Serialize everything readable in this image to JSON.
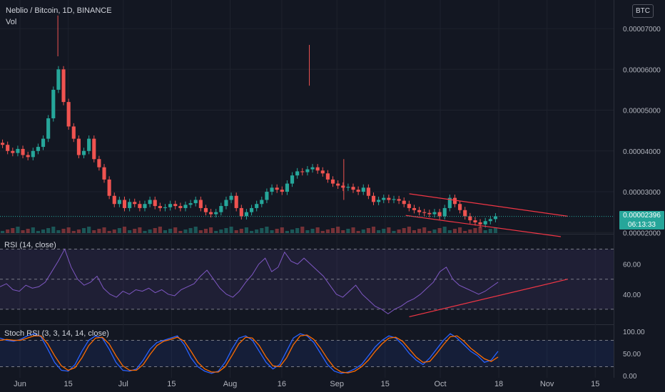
{
  "header": {
    "title": "Neblio / Bitcoin, 1D, BINANCE",
    "vol_label": "Vol",
    "currency_badge": "BTC",
    "rsi_label": "RSI (14, close)",
    "stoch_label": "Stoch RSI (3, 3, 14, 14, close)"
  },
  "price_badge": {
    "price": "0.00002396",
    "countdown": "06:13:33"
  },
  "colors": {
    "background": "#131722",
    "up": "#26a69a",
    "down": "#ef5350",
    "rsi": "#7e57c2",
    "stoch_k": "#2962ff",
    "stoch_d": "#ff6d00",
    "trendline": "#f23645"
  },
  "chart_data": [
    {
      "type": "candlestick",
      "title": "Neblio / Bitcoin, 1D, BINANCE",
      "x_ticks": [
        "Jun",
        "15",
        "Jul",
        "15",
        "Aug",
        "16",
        "Sep",
        "15",
        "Oct",
        "18",
        "Nov",
        "15"
      ],
      "y_ticks": [
        "0.00002000",
        "0.00003000",
        "0.00004000",
        "0.00005000",
        "0.00006000",
        "0.00007000"
      ],
      "ylim": [
        1.97e-05,
        7.7e-05
      ],
      "current_price": 2.396e-05,
      "closes": [
        4.15,
        4.0,
        3.95,
        4.05,
        3.9,
        3.85,
        4.0,
        4.1,
        4.3,
        4.8,
        5.5,
        6.0,
        5.2,
        4.6,
        4.3,
        3.9,
        4.0,
        4.3,
        3.8,
        3.6,
        3.3,
        2.9,
        2.7,
        2.8,
        2.6,
        2.75,
        2.7,
        2.6,
        2.7,
        2.8,
        2.65,
        2.6,
        2.62,
        2.7,
        2.65,
        2.6,
        2.68,
        2.72,
        2.8,
        2.6,
        2.5,
        2.45,
        2.5,
        2.65,
        2.8,
        2.9,
        2.6,
        2.4,
        2.5,
        2.6,
        2.7,
        2.8,
        3.0,
        3.1,
        3.05,
        3.0,
        3.2,
        3.4,
        3.5,
        3.48,
        3.55,
        3.6,
        3.52,
        3.45,
        3.3,
        3.2,
        3.15,
        3.1,
        3.12,
        3.05,
        3.0,
        3.1,
        2.9,
        2.75,
        2.8,
        2.85,
        2.8,
        2.82,
        2.78,
        2.7,
        2.6,
        2.55,
        2.5,
        2.48,
        2.45,
        2.5,
        2.4,
        2.6,
        2.85,
        2.7,
        2.55,
        2.4,
        2.3,
        2.25,
        2.2,
        2.28,
        2.33,
        2.396
      ],
      "volume_spikes": [
        {
          "date": "Jun 12",
          "y": 2e-05
        },
        {
          "date": "Aug 24",
          "y": 2e-05
        },
        {
          "date": "Sep 3",
          "y": 2e-05
        }
      ],
      "trendlines": [
        {
          "from": [
            "Sep 22",
            2.95e-05
          ],
          "to": [
            "Nov 7",
            2.4e-05
          ]
        },
        {
          "from": [
            "Sep 21",
            2.42e-05
          ],
          "to": [
            "Nov 5",
            1.9e-05
          ]
        }
      ]
    },
    {
      "type": "line",
      "title": "RSI (14, close)",
      "y_ticks": [
        "40.00",
        "60.00"
      ],
      "ylim": [
        20,
        75
      ],
      "bands": [
        30,
        50,
        70
      ],
      "values": [
        45,
        47,
        43,
        42,
        46,
        44,
        45,
        48,
        55,
        62,
        70,
        58,
        50,
        46,
        48,
        52,
        44,
        40,
        38,
        42,
        40,
        43,
        42,
        44,
        41,
        43,
        40,
        39,
        43,
        45,
        47,
        52,
        56,
        50,
        44,
        40,
        38,
        42,
        48,
        53,
        60,
        64,
        55,
        58,
        68,
        62,
        60,
        64,
        60,
        56,
        52,
        46,
        40,
        38,
        42,
        46,
        40,
        36,
        32,
        30,
        27,
        30,
        32,
        35,
        37,
        40,
        44,
        48,
        55,
        58,
        50,
        46,
        44,
        42,
        40,
        42,
        45,
        48
      ],
      "trendline": {
        "from": 25,
        "to": 50
      }
    },
    {
      "type": "line",
      "title": "Stoch RSI (3, 3, 14, 14, close)",
      "y_ticks": [
        "0.00",
        "50.00",
        "100.00"
      ],
      "ylim": [
        -5,
        105
      ],
      "bands": [
        20,
        80
      ],
      "series": [
        {
          "values": [
            85,
            80,
            78,
            82,
            90,
            95,
            88,
            60,
            30,
            12,
            10,
            25,
            55,
            80,
            90,
            85,
            60,
            30,
            12,
            10,
            15,
            35,
            60,
            75,
            80,
            85,
            90,
            70,
            40,
            20,
            10,
            5,
            10,
            30,
            60,
            85,
            90,
            80,
            55,
            30,
            15,
            25,
            55,
            85,
            95,
            90,
            75,
            50,
            25,
            10,
            5,
            8,
            15,
            25,
            45,
            65,
            80,
            90,
            85,
            70,
            50,
            35,
            25,
            40,
            60,
            80,
            95,
            85,
            70,
            55,
            45,
            30,
            35,
            55
          ]
        },
        {
          "values": [
            80,
            82,
            80,
            80,
            85,
            90,
            90,
            72,
            45,
            22,
            12,
            18,
            40,
            68,
            85,
            87,
            72,
            45,
            22,
            12,
            12,
            25,
            48,
            68,
            78,
            82,
            87,
            78,
            55,
            30,
            15,
            8,
            8,
            20,
            45,
            72,
            87,
            85,
            68,
            42,
            22,
            20,
            40,
            70,
            90,
            92,
            82,
            62,
            38,
            18,
            8,
            6,
            10,
            20,
            35,
            55,
            72,
            85,
            87,
            78,
            60,
            42,
            30,
            32,
            50,
            70,
            88,
            90,
            78,
            62,
            50,
            38,
            32,
            42
          ]
        }
      ]
    }
  ]
}
